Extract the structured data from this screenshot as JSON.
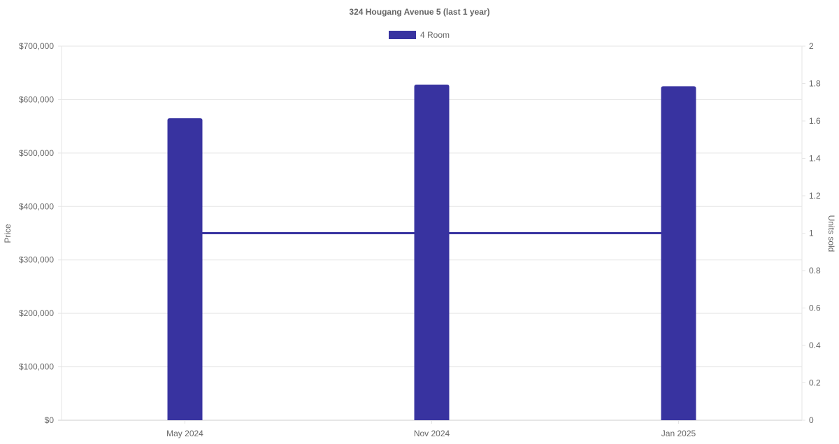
{
  "chart_data": {
    "type": "bar",
    "title": "324 Hougang Avenue 5 (last 1 year)",
    "categories": [
      "May 2024",
      "Nov 2024",
      "Jan 2025"
    ],
    "series": [
      {
        "name": "4 Room",
        "type": "bar",
        "axis": "left",
        "values": [
          565000,
          628000,
          625000
        ],
        "color": "#3833A0"
      },
      {
        "type": "line",
        "axis": "right",
        "values": [
          1,
          1,
          1
        ],
        "color": "#3833A0"
      }
    ],
    "ylabel": "Price",
    "y2label": "Units sold",
    "ylim": [
      0,
      700000
    ],
    "y2lim": [
      0,
      2
    ],
    "yticks": [
      "$0",
      "$100,000",
      "$200,000",
      "$300,000",
      "$400,000",
      "$500,000",
      "$600,000",
      "$700,000"
    ],
    "y2ticks": [
      "0",
      "0.2",
      "0.4",
      "0.6",
      "0.8",
      "1",
      "1.2",
      "1.4",
      "1.6",
      "1.8",
      "2"
    ],
    "legend": {
      "position": "top",
      "entries": [
        "4 Room"
      ]
    },
    "grid": true
  }
}
